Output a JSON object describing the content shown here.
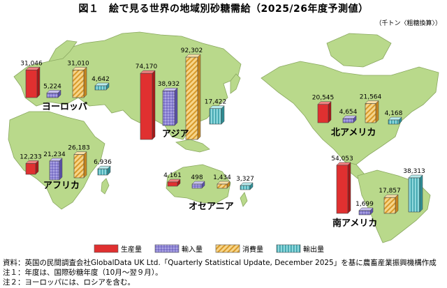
{
  "title": "図１　絵で見る世界の地域別砂糖需給（2025/26年度予測値）",
  "unit": "（千トン〈粗糖換算〉）",
  "colors": {
    "production": "#e03030",
    "import": "#8f86d6",
    "consumption": "#f0b040",
    "export": "#5cc0c8",
    "land": "#b9d98b",
    "land_edge": "#8aa860"
  },
  "chart_data": {
    "type": "bar",
    "series_names": [
      "生産量",
      "輸入量",
      "消費量",
      "輸出量"
    ],
    "ylim": [
      0,
      92302
    ],
    "regions": [
      {
        "name": "ヨーロッパ",
        "values": [
          31046,
          5224,
          31010,
          4642
        ]
      },
      {
        "name": "アフリカ",
        "values": [
          12233,
          21234,
          26183,
          6936
        ]
      },
      {
        "name": "アジア",
        "values": [
          74170,
          38932,
          92302,
          17422
        ]
      },
      {
        "name": "オセアニア",
        "values": [
          4161,
          498,
          1434,
          3327
        ]
      },
      {
        "name": "北アメリカ",
        "values": [
          20545,
          4654,
          21564,
          4168
        ]
      },
      {
        "name": "南アメリカ",
        "values": [
          54053,
          1699,
          17857,
          38313
        ]
      }
    ],
    "value_labels": {
      "ヨーロッパ": [
        "31,046",
        "5,224",
        "31,010",
        "4,642"
      ],
      "アフリカ": [
        "12,233",
        "21,234",
        "26,183",
        "6,936"
      ],
      "アジア": [
        "74,170",
        "38,932",
        "92,302",
        "17,422"
      ],
      "オセアニア": [
        "4,161",
        "498",
        "1,434",
        "3,327"
      ],
      "北アメリカ": [
        "20,545",
        "4,654",
        "21,564",
        "4,168"
      ],
      "南アメリカ": [
        "54,053",
        "1,699",
        "17,857",
        "38,313"
      ]
    }
  },
  "legend": [
    {
      "label": "生産量",
      "key": "production"
    },
    {
      "label": "輸入量",
      "key": "import"
    },
    {
      "label": "消費量",
      "key": "consumption"
    },
    {
      "label": "輸出量",
      "key": "export"
    }
  ],
  "notes": [
    "資料：英国の民間調査会社GlobalData UK Ltd.「Quarterly Statistical Update, December 2025」を基に農畜産業振興機構作成",
    "注１：年度は、国際砂糖年度（10月～翌９月）。",
    "注２：ヨーロッパには、ロシアを含む。"
  ]
}
